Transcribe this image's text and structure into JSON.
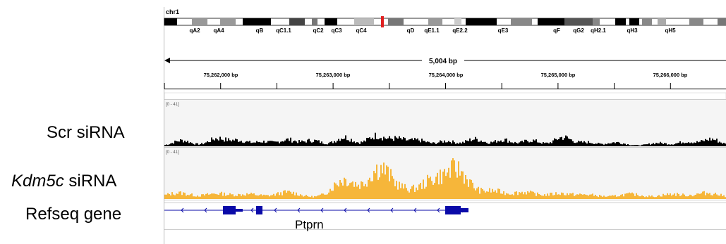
{
  "chromosome": "chr1",
  "ideogram_bands": [
    "qA2",
    "qA4",
    "qB",
    "qC1.1",
    "qC2",
    "qC3",
    "qC4",
    "qD",
    "qE1.1",
    "qE2.2",
    "qE3",
    "qF",
    "qG2",
    "qH2.1",
    "qH3",
    "qH5"
  ],
  "region_span": "5,004 bp",
  "ruler_ticks": [
    "75,262,000 bp",
    "75,263,000 bp",
    "75,264,000 bp",
    "75,265,000 bp",
    "75,266,000 bp"
  ],
  "tracks": [
    {
      "label": "Scr siRNA",
      "range": "[0 - 41]",
      "color": "#000000"
    },
    {
      "label_italic": "Kdm5c",
      "label_rest": " siRNA",
      "range": "[0 - 41]",
      "color": "#f6b63a"
    }
  ],
  "gene_track": {
    "label": "Refseq gene",
    "gene_name": "Ptprn",
    "color": "#0a0aa8"
  },
  "colors": {
    "scr_track": "#000000",
    "kdm5c_track": "#f6b63a",
    "gene": "#0a0aa8",
    "region_marker": "#e02020"
  }
}
